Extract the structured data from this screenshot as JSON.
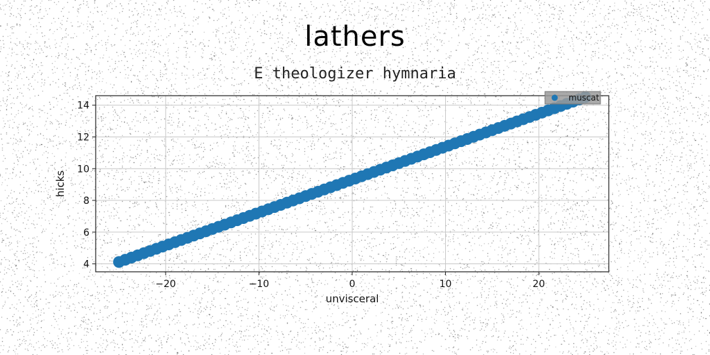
{
  "title": "lathers",
  "subtitle": "E theologizer hymnaria",
  "chart_data": {
    "type": "scatter",
    "title": "lathers",
    "subtitle": "E theologizer hymnaria",
    "xlabel": "unvisceral",
    "ylabel": "hicks",
    "xlim": [
      -27.5,
      27.5
    ],
    "ylim": [
      3.5,
      14.6
    ],
    "xticks": [
      -20,
      -10,
      0,
      10,
      20
    ],
    "yticks": [
      4,
      6,
      8,
      10,
      12,
      14
    ],
    "xtick_labels": [
      "−20",
      "−10",
      "0",
      "10",
      "20"
    ],
    "ytick_labels": [
      "4",
      "6",
      "8",
      "10",
      "12",
      "14"
    ],
    "grid": true,
    "legend": "top-right",
    "series": [
      {
        "name": "muscat",
        "color": "#1f77b4",
        "x_start": -25,
        "x_end": 25,
        "count": 76,
        "slope": 0.2076,
        "intercept": 9.31,
        "note_fn": "linear"
      }
    ]
  }
}
